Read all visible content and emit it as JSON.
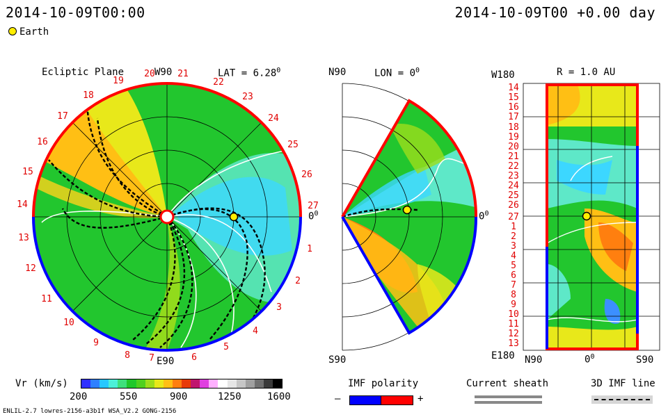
{
  "header": {
    "timestamp_left": "2014-10-09T00:00",
    "timestamp_right": "2014-10-09T00 +0.00 day",
    "legend_earth": "Earth"
  },
  "ecliptic": {
    "title": "Ecliptic Plane",
    "lat_label": "LAT = 6.28",
    "lat_deg": "0",
    "top_label": "W90",
    "bottom_label": "E90",
    "right_label": "0",
    "right_deg": "0",
    "sector_labels": [
      "1",
      "2",
      "3",
      "4",
      "5",
      "6",
      "7",
      "8",
      "9",
      "10",
      "11",
      "12",
      "13",
      "14",
      "15",
      "16",
      "17",
      "18",
      "19",
      "20",
      "21",
      "22",
      "23",
      "24",
      "25",
      "26",
      "27"
    ]
  },
  "meridional": {
    "top_left": "N90",
    "lon_label": "LON = 0",
    "lon_deg": "0",
    "right_label": "0",
    "right_deg": "0",
    "bottom_left": "S90"
  },
  "radial": {
    "top_left": "W180",
    "r_label": "R = 1.0 AU",
    "bottom_left": "E180",
    "x_left": "N90",
    "x_mid": "0",
    "x_mid_deg": "0",
    "x_right": "S90",
    "row_labels": [
      "14",
      "15",
      "16",
      "17",
      "18",
      "19",
      "20",
      "21",
      "22",
      "23",
      "24",
      "25",
      "26",
      "27",
      "1",
      "2",
      "3",
      "4",
      "5",
      "6",
      "7",
      "8",
      "9",
      "10",
      "11",
      "12",
      "13"
    ]
  },
  "colorbar": {
    "label": "Vr (km/s)",
    "ticks": [
      "200",
      "550",
      "900",
      "1250",
      "1600"
    ],
    "colors": [
      "#3030ff",
      "#2f80ff",
      "#27c8ff",
      "#4cf0d8",
      "#3ee07c",
      "#1fc72a",
      "#4fd01e",
      "#9ddd1b",
      "#e8e81a",
      "#ffbf14",
      "#ff7f0f",
      "#e83a08",
      "#c0166e",
      "#e040e0",
      "#ffb0ff",
      "#ffffff",
      "#e6e6e6",
      "#c6c6c6",
      "#a0a0a0",
      "#707070",
      "#3a3a3a",
      "#000000"
    ]
  },
  "imf": {
    "label": "IMF polarity",
    "minus": "–",
    "plus": "+",
    "neg_color": "#0000ff",
    "pos_color": "#ff0000"
  },
  "sheath": {
    "label": "Current sheath"
  },
  "imfline": {
    "label": "3D IMF line"
  },
  "footer": {
    "model_info": "ENLIL-2.7 lowres-2156-a3b1f WSA_V2.2 GONG-2156"
  }
}
